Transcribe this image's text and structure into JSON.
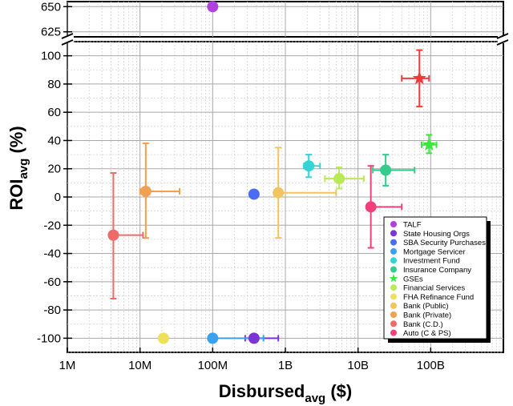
{
  "chart_data": {
    "type": "scatter",
    "x_axis": {
      "label_main": "Disbursed",
      "label_sub": "avg",
      "label_unit": " ($)",
      "scale": "log",
      "xlim": [
        1000000,
        1000000000000
      ],
      "tick_values": [
        1000000,
        10000000,
        100000000,
        1000000000,
        10000000000,
        100000000000
      ],
      "tick_labels": [
        "1M",
        "10M",
        "100M",
        "1B",
        "10B",
        "100B"
      ]
    },
    "y_axis": {
      "label_main": "ROI",
      "label_sub": "avg",
      "label_unit": " (%)",
      "scale": "linear",
      "broken": true,
      "lower_range": [
        -110,
        110
      ],
      "upper_range": [
        620,
        655
      ],
      "lower_ticks": [
        -100,
        -80,
        -60,
        -40,
        -20,
        0,
        20,
        40,
        60,
        80,
        100
      ],
      "upper_ticks": [
        625,
        650
      ]
    },
    "grid": true,
    "legend_position": "bottom-right",
    "series": [
      {
        "name": "TALF",
        "color": "#b240e0",
        "marker": "circle",
        "x": 100000000,
        "y": 650
      },
      {
        "name": "State Housing Orgs",
        "color": "#7b35d6",
        "marker": "circle",
        "x": 370000000,
        "y": -100,
        "x_lo": 280000000,
        "x_hi": 800000000
      },
      {
        "name": "SBA Security Purchases",
        "color": "#4a6cf0",
        "marker": "circle",
        "x": 370000000,
        "y": 2
      },
      {
        "name": "Mortgage Servicer",
        "color": "#3aa0f0",
        "marker": "circle",
        "x": 100000000,
        "y": -100,
        "x_hi": 500000000
      },
      {
        "name": "Investment Fund",
        "color": "#35d4d4",
        "marker": "circle",
        "x": 2100000000,
        "y": 22,
        "x_lo": 1800000000,
        "x_hi": 3000000000,
        "y_lo": 14,
        "y_hi": 30
      },
      {
        "name": "Insurance Company",
        "color": "#33cc8c",
        "marker": "circle",
        "x": 24000000000,
        "y": 19,
        "x_lo": 16000000000,
        "x_hi": 60000000000,
        "y_lo": 8,
        "y_hi": 30
      },
      {
        "name": "GSEs",
        "color": "#3ce63c",
        "marker": "star",
        "x": 95000000000,
        "y": 37,
        "x_lo": 75000000000,
        "x_hi": 120000000000,
        "y_lo": 31,
        "y_hi": 44
      },
      {
        "name": "Financial Services",
        "color": "#b8ea55",
        "marker": "circle",
        "x": 5500000000,
        "y": 13,
        "x_lo": 3500000000,
        "x_hi": 12000000000,
        "y_lo": 6,
        "y_hi": 21
      },
      {
        "name": "FHA Refinance Fund",
        "color": "#ede05a",
        "marker": "circle",
        "x": 21000000,
        "y": -100
      },
      {
        "name": "Bank (Public)",
        "color": "#f2c460",
        "marker": "circle",
        "x": 800000000,
        "y": 3,
        "x_hi": 5000000000,
        "y_lo": -29,
        "y_hi": 35
      },
      {
        "name": "Bank (Private)",
        "color": "#f0a050",
        "marker": "circle",
        "x": 12000000,
        "y": 4,
        "x_lo": 10000000,
        "x_hi": 35000000,
        "y_lo": -29,
        "y_hi": 38
      },
      {
        "name": "Bank (C.D.)",
        "color": "#f06a6a",
        "marker": "circle",
        "x": 4300000,
        "y": -27,
        "x_hi": 11000000,
        "y_lo": -72,
        "y_hi": 17
      },
      {
        "name": "Auto (C & PS)",
        "color": "#f0407a",
        "marker": "circle",
        "x": 15000000000,
        "y": -7,
        "x_hi": 40000000000,
        "y_lo": -36,
        "y_hi": 22
      },
      {
        "name": "",
        "color": "#f03a3a",
        "marker": "star",
        "x": 70000000000,
        "y": 84,
        "x_lo": 40000000000,
        "x_hi": 95000000000,
        "y_lo": 64,
        "y_hi": 104
      }
    ]
  }
}
